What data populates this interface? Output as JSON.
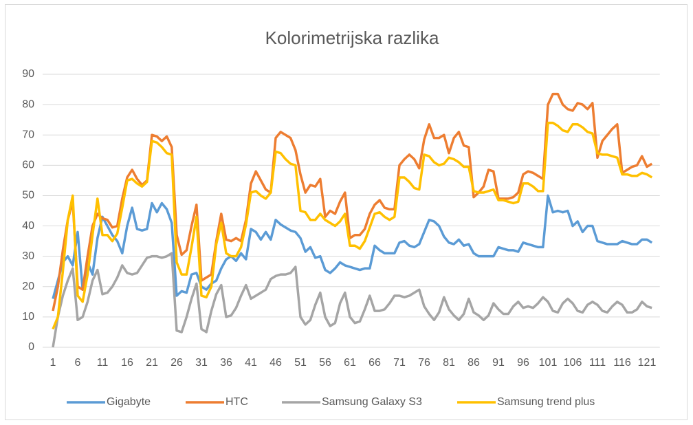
{
  "chart_data": {
    "type": "line",
    "title": "Kolorimetrijska razlika",
    "categories": [
      1,
      null,
      null,
      null,
      null,
      6,
      null,
      null,
      null,
      null,
      11,
      null,
      null,
      null,
      null,
      16,
      null,
      null,
      null,
      null,
      21,
      null,
      null,
      null,
      null,
      26,
      null,
      null,
      null,
      null,
      31,
      null,
      null,
      null,
      null,
      36,
      null,
      null,
      null,
      null,
      41,
      null,
      null,
      null,
      null,
      46,
      null,
      null,
      null,
      null,
      51,
      null,
      null,
      null,
      null,
      56,
      null,
      null,
      null,
      null,
      61,
      null,
      null,
      null,
      null,
      66,
      null,
      null,
      null,
      null,
      71,
      null,
      null,
      null,
      null,
      76,
      null,
      null,
      null,
      null,
      81,
      null,
      null,
      null,
      null,
      86,
      null,
      null,
      null,
      null,
      91,
      null,
      null,
      null,
      null,
      96,
      null,
      null,
      null,
      null,
      101,
      null,
      null,
      null,
      null,
      106,
      null,
      null,
      null,
      null,
      111,
      null,
      null,
      null,
      null,
      116,
      null,
      null,
      null,
      null,
      121,
      null
    ],
    "series": [
      {
        "name": "Gigabyte",
        "color": "#5b9bd5",
        "values": [
          16,
          22,
          28,
          30,
          27,
          38,
          19,
          28,
          24,
          36,
          43,
          40,
          37,
          35,
          31,
          40,
          46,
          39,
          38.5,
          39,
          47.5,
          44.5,
          47.5,
          45.5,
          41,
          17,
          18.5,
          18,
          24,
          24.5,
          20,
          19,
          21,
          22,
          26,
          29,
          30,
          28.5,
          31,
          29,
          39,
          38,
          35.5,
          38,
          35.5,
          42,
          40.5,
          39.5,
          38.5,
          38,
          36,
          31.5,
          33,
          29.5,
          30,
          25.5,
          24.5,
          26,
          28,
          27,
          26.5,
          26,
          25.5,
          26,
          26,
          33.5,
          32,
          31,
          31,
          31,
          34.5,
          35,
          33.5,
          33,
          34,
          38,
          42,
          41.5,
          40,
          36.5,
          34.5,
          34,
          35.5,
          33.5,
          34,
          31,
          30,
          30,
          30,
          30,
          33,
          32.5,
          32,
          32,
          31.5,
          34.5,
          34,
          33.5,
          33,
          33,
          50,
          44.5,
          45,
          44.5,
          45,
          40,
          41.5,
          38,
          40,
          40,
          35,
          34.5,
          34,
          34,
          34,
          35,
          34.5,
          34,
          34,
          35.5,
          35.5,
          34.5
        ]
      },
      {
        "name": "HTC",
        "color": "#ed7d31",
        "values": [
          12,
          20,
          32,
          42,
          48,
          20,
          19,
          30,
          40,
          44,
          42.5,
          42,
          39.5,
          40,
          49,
          56,
          58.5,
          55.5,
          53.5,
          55,
          70,
          69.5,
          68,
          69.5,
          66,
          37,
          30.5,
          32,
          40,
          47,
          22,
          23,
          24,
          35,
          44,
          35.5,
          35,
          36,
          35,
          42,
          54,
          58,
          55,
          52,
          51,
          69,
          71,
          70,
          69,
          65,
          57,
          51,
          53.5,
          53,
          55.5,
          43,
          45,
          44,
          48,
          51,
          36,
          37,
          37,
          39,
          44,
          47,
          48.5,
          46,
          45.5,
          45.5,
          60,
          62,
          63.5,
          62,
          59,
          68.5,
          73.5,
          69,
          69,
          70,
          64,
          69,
          71,
          66.5,
          66,
          49.5,
          51,
          53,
          58.5,
          58,
          49,
          49,
          49,
          49.5,
          51,
          57,
          58,
          57.5,
          56.5,
          55.5,
          80,
          83.5,
          83.5,
          80,
          78.5,
          78,
          80.5,
          80,
          78.5,
          80.5,
          62.5,
          68,
          70,
          72,
          73.5,
          57.5,
          58.5,
          59.5,
          60,
          63,
          59.5,
          60.5
        ]
      },
      {
        "name": "Samsung Galaxy S3",
        "color": "#a5a5a5",
        "values": [
          0,
          10,
          17,
          22,
          26,
          9,
          10,
          15,
          22,
          25.5,
          17.5,
          18,
          20,
          23,
          27,
          24.5,
          24,
          24.5,
          27,
          29.5,
          30,
          30,
          29.5,
          30,
          31,
          5.5,
          5,
          10,
          16,
          21,
          6,
          5,
          12,
          17.5,
          20.5,
          10,
          10.5,
          13,
          17,
          20.5,
          16,
          17,
          18,
          19,
          22.5,
          23.5,
          24,
          24,
          24.5,
          26.5,
          10,
          7.5,
          9,
          14,
          18,
          10,
          7,
          8,
          14.5,
          18,
          10,
          8,
          8.5,
          12.5,
          17,
          12,
          12,
          12.5,
          14.5,
          17,
          17,
          16.5,
          17,
          18,
          19,
          13.5,
          11,
          9,
          11.5,
          16.5,
          12.5,
          10.5,
          9,
          11,
          16,
          11.5,
          10.5,
          9,
          10.5,
          14.5,
          12.5,
          11,
          11,
          13.5,
          15,
          13,
          13.5,
          13,
          14.5,
          16.5,
          15,
          12,
          11.5,
          14.5,
          16,
          14.5,
          12,
          11.5,
          14,
          15,
          14,
          12,
          11.5,
          13.5,
          15,
          14,
          11.5,
          11.5,
          12.5,
          15,
          13.5,
          13
        ]
      },
      {
        "name": "Samsung trend plus",
        "color": "#ffc000",
        "values": [
          6,
          10,
          25,
          42,
          50,
          17,
          15,
          24,
          37,
          49,
          37,
          37,
          35,
          37.5,
          46,
          55,
          55.5,
          54,
          53,
          54.5,
          68,
          67.5,
          66,
          64,
          63.5,
          28,
          24,
          24,
          33,
          43,
          17,
          16.5,
          20,
          34,
          41,
          31,
          30,
          30,
          33,
          40.5,
          51,
          51.5,
          50,
          49,
          51,
          64.5,
          64,
          62,
          60.5,
          60,
          45,
          44.5,
          42,
          42,
          44,
          42,
          41,
          40,
          41.5,
          44,
          33.5,
          33.5,
          32.5,
          35,
          39.5,
          44,
          44.5,
          43,
          42,
          43,
          56,
          56,
          54.5,
          52.5,
          52,
          63.5,
          63,
          61,
          60,
          60.5,
          62.5,
          62,
          61,
          59.5,
          59.5,
          51.5,
          51,
          51,
          51.5,
          52,
          48.5,
          48.5,
          48,
          47.5,
          48,
          54,
          54,
          53,
          51.5,
          51.5,
          74,
          74,
          73,
          71.5,
          71,
          73.5,
          73.5,
          72.5,
          71,
          70.5,
          64,
          63.5,
          63.5,
          63,
          62.5,
          57,
          57,
          56.5,
          56.5,
          57.5,
          57,
          56
        ]
      }
    ],
    "ylim": [
      0,
      90
    ],
    "yticks": [
      0,
      10,
      20,
      30,
      40,
      50,
      60,
      70,
      80,
      90
    ],
    "grid": true,
    "legend": "bottom"
  }
}
